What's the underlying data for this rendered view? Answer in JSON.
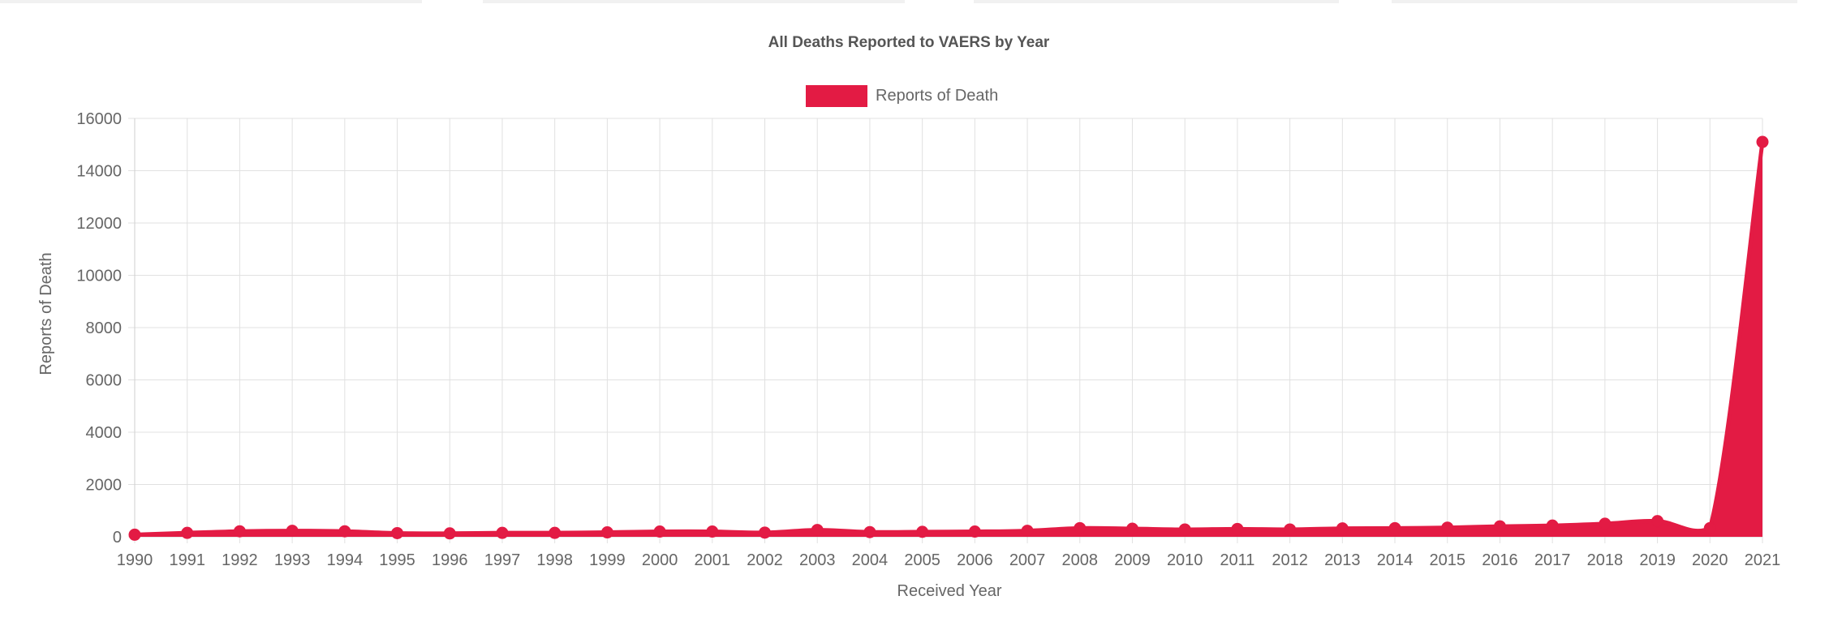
{
  "chart_data": {
    "type": "area",
    "title": "All Deaths Reported to VAERS by Year",
    "xlabel": "Received Year",
    "ylabel": "Reports of Death",
    "legend": {
      "position": "top-center",
      "entries": [
        "Reports of Death"
      ]
    },
    "grid": true,
    "ylim": [
      0,
      16000
    ],
    "yticks": [
      0,
      2000,
      4000,
      6000,
      8000,
      10000,
      12000,
      14000,
      16000
    ],
    "colors": {
      "series": "#e31b44",
      "grid": "#e1e1e1",
      "text": "#666666",
      "title": "#555555"
    },
    "x": [
      "1990",
      "1991",
      "1992",
      "1993",
      "1994",
      "1995",
      "1996",
      "1997",
      "1998",
      "1999",
      "2000",
      "2001",
      "2002",
      "2003",
      "2004",
      "2005",
      "2006",
      "2007",
      "2008",
      "2009",
      "2010",
      "2011",
      "2012",
      "2013",
      "2014",
      "2015",
      "2016",
      "2017",
      "2018",
      "2019",
      "2020",
      "2021"
    ],
    "series": [
      {
        "name": "Reports of Death",
        "values": [
          80,
          150,
          210,
          230,
          210,
          140,
          130,
          150,
          150,
          170,
          200,
          200,
          160,
          260,
          180,
          190,
          200,
          230,
          330,
          310,
          280,
          300,
          280,
          320,
          330,
          350,
          400,
          430,
          500,
          600,
          330,
          15100
        ]
      }
    ]
  }
}
